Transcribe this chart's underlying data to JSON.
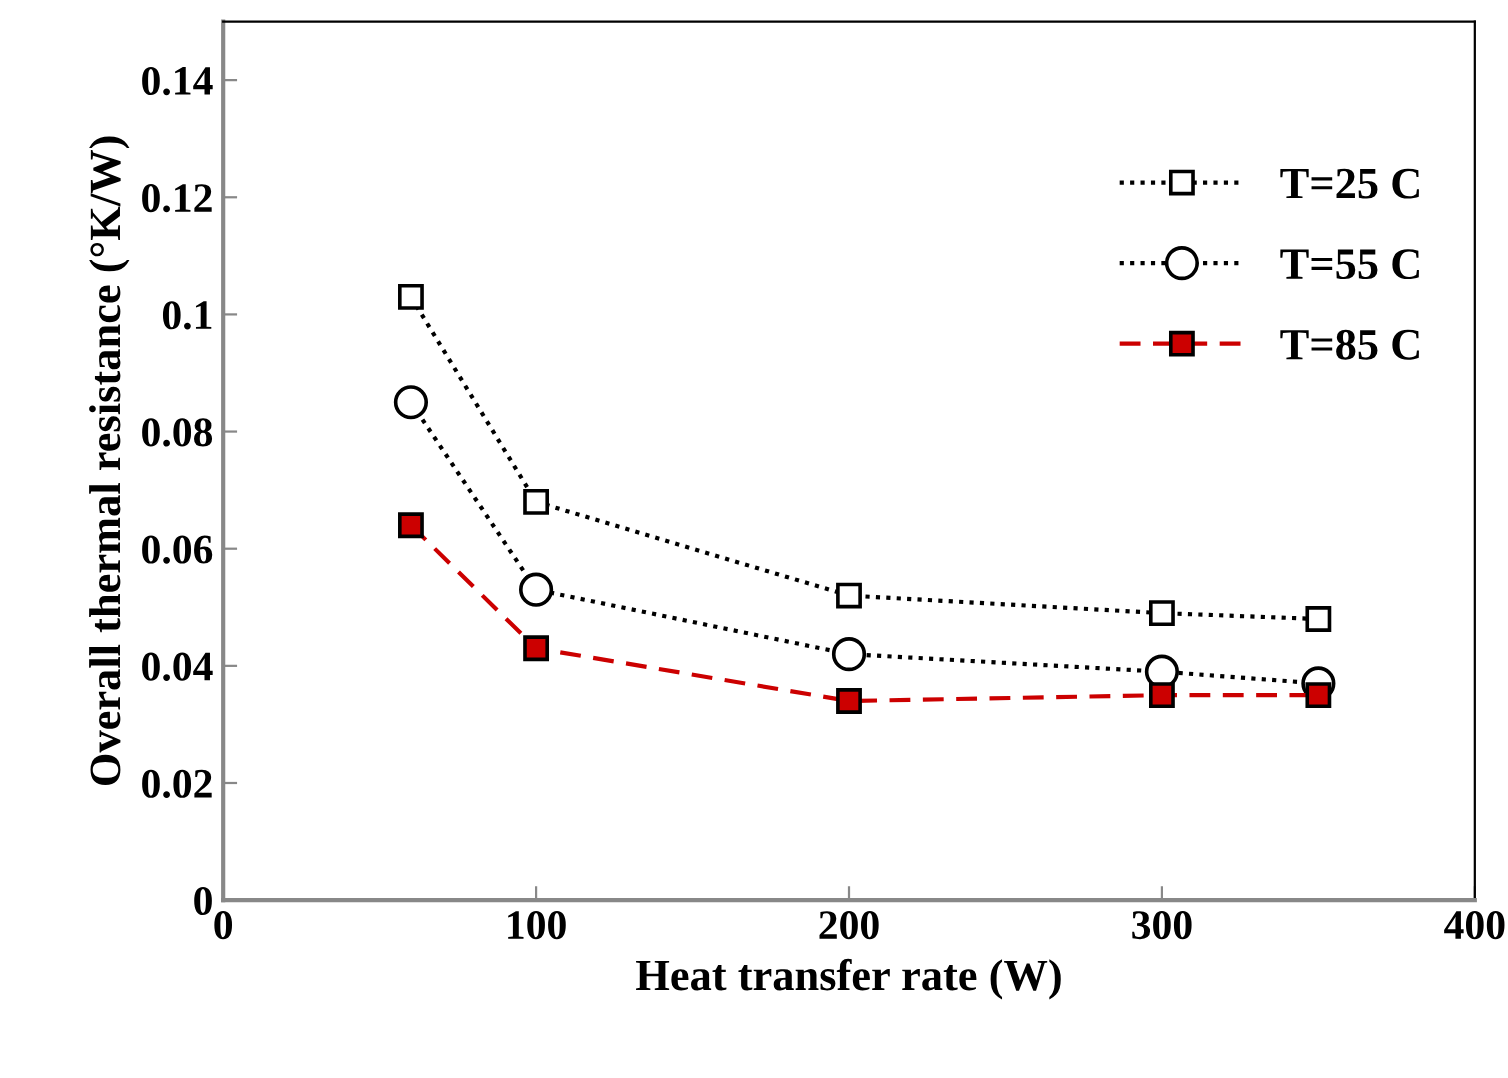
{
  "chart_data": {
    "type": "line",
    "xlabel": "Heat transfer rate (W)",
    "ylabel": "Overall thermal resistance (°K/W)",
    "x": [
      60,
      100,
      200,
      300,
      350
    ],
    "series": [
      {
        "name": "T=25 C",
        "color": "#000000",
        "values": [
          0.103,
          0.068,
          0.052,
          0.049,
          0.048
        ],
        "marker": "square",
        "line_style": "dotted"
      },
      {
        "name": "T=55 C",
        "color": "#000000",
        "values": [
          0.085,
          0.053,
          0.042,
          0.039,
          0.037
        ],
        "marker": "circle",
        "line_style": "dotted"
      },
      {
        "name": "T=85 C",
        "color": "#cc0000",
        "values": [
          0.064,
          0.043,
          0.034,
          0.035,
          0.035
        ],
        "marker": "square",
        "line_style": "dashed"
      }
    ],
    "xlim": [
      0,
      400
    ],
    "xticks": [
      0,
      100,
      200,
      300,
      400
    ],
    "ylim": [
      0,
      0.15
    ],
    "yticks": [
      0,
      0.02,
      0.04,
      0.06,
      0.08,
      {
        "value": 0.1,
        "label": "0.1"
      },
      0.12,
      0.14
    ],
    "grid": false,
    "legend": "top right"
  }
}
